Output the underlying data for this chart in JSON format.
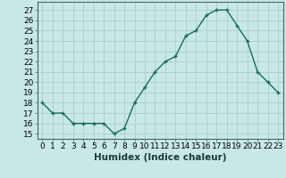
{
  "x": [
    0,
    1,
    2,
    3,
    4,
    5,
    6,
    7,
    8,
    9,
    10,
    11,
    12,
    13,
    14,
    15,
    16,
    17,
    18,
    19,
    20,
    21,
    22,
    23
  ],
  "y": [
    18,
    17,
    17,
    16,
    16,
    16,
    16,
    15,
    15.5,
    18,
    19.5,
    21,
    22,
    22.5,
    24.5,
    25,
    26.5,
    27,
    27,
    25.5,
    24,
    21,
    20,
    19
  ],
  "line_color": "#1a6b5a",
  "marker": "+",
  "bg_color": "#c8e8e8",
  "grid_color": "#aacccc",
  "xlabel": "Humidex (Indice chaleur)",
  "ylabel_ticks": [
    15,
    16,
    17,
    18,
    19,
    20,
    21,
    22,
    23,
    24,
    25,
    26,
    27
  ],
  "ylim": [
    14.5,
    27.8
  ],
  "xlim": [
    -0.5,
    23.5
  ],
  "tick_fontsize": 6.5,
  "label_fontsize": 7.5
}
